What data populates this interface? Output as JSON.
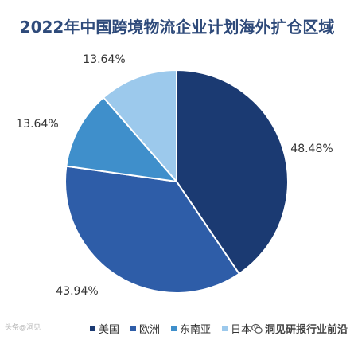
{
  "chart_data": {
    "type": "pie",
    "title": "2022年中国跨境物流企业计划海外扩仓区域",
    "slices": [
      {
        "name": "美国",
        "value": 48.48,
        "label": "48.48%",
        "color": "#1b3a72"
      },
      {
        "name": "欧洲",
        "value": 43.94,
        "label": "43.94%",
        "color": "#2e5da8"
      },
      {
        "name": "东南亚",
        "value": 13.64,
        "label": "13.64%",
        "color": "#3f8fcb"
      },
      {
        "name": "日本",
        "value": 13.64,
        "label": "13.64%",
        "color": "#9cc9ec"
      }
    ],
    "legend_position": "bottom"
  },
  "watermark_left": "头条@洞见",
  "source_label": "洞见研报行业前沿",
  "icons": {
    "source": "wechat-icon"
  }
}
